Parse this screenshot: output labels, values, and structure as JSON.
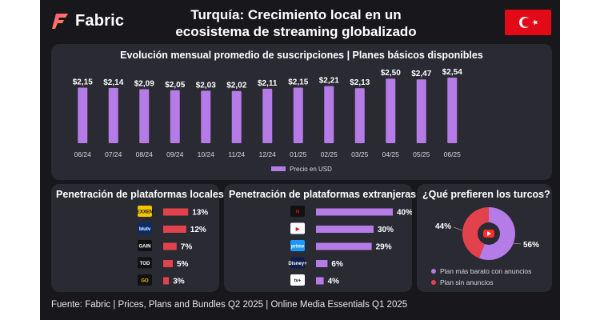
{
  "brand": {
    "name": "Fabric"
  },
  "header": {
    "title_line1": "Turquía: Crecimiento local en un",
    "title_line2": "ecosistema de streaming globalizado"
  },
  "colors": {
    "purple": "#b57be6",
    "red": "#e2424b",
    "panel": "#2a2a33",
    "background": "#17171c"
  },
  "chart_data": [
    {
      "type": "bar",
      "title": "Evolución mensual promedio de suscripciones | Planes básicos disponibles",
      "categories": [
        "06/24",
        "07/24",
        "08/24",
        "09/24",
        "10/24",
        "11/24",
        "12/24",
        "01/25",
        "02/25",
        "03/25",
        "04/25",
        "05/25",
        "06/25"
      ],
      "values": [
        2.15,
        2.14,
        2.09,
        2.05,
        2.03,
        2.02,
        2.11,
        2.15,
        2.21,
        2.13,
        2.5,
        2.47,
        2.54
      ],
      "labels": [
        "$2,15",
        "$2,14",
        "$2,09",
        "$2,05",
        "$2,03",
        "$2,02",
        "$2,11",
        "$2,15",
        "$2,21",
        "$2,13",
        "$2,50",
        "$2,47",
        "$2,54"
      ],
      "legend": "Precio en USD",
      "ylim": [
        0,
        2.6
      ]
    },
    {
      "type": "bar",
      "orientation": "horizontal",
      "title": "Penetración de plataformas locales",
      "categories": [
        "EXXEN",
        "blutv",
        "GAIN",
        "TOD",
        "TV+ GO"
      ],
      "values": [
        13,
        12,
        7,
        5,
        3
      ],
      "labels": [
        "13%",
        "12%",
        "7%",
        "5%",
        "3%"
      ],
      "xlim": [
        0,
        45
      ]
    },
    {
      "type": "bar",
      "orientation": "horizontal",
      "title": "Penetración de plataformas extranjeras",
      "categories": [
        "Netflix",
        "YouTube",
        "Prime Video",
        "Disney+",
        "Apple TV+"
      ],
      "values": [
        40,
        30,
        29,
        6,
        4
      ],
      "labels": [
        "40%",
        "30%",
        "29%",
        "6%",
        "4%"
      ],
      "xlim": [
        0,
        45
      ]
    },
    {
      "type": "pie",
      "title": "¿Qué prefieren los turcos?",
      "categories": [
        "Plan más barato con anuncios",
        "Plan sin anuncios"
      ],
      "values": [
        56,
        44
      ],
      "labels": [
        "56%",
        "44%"
      ]
    }
  ],
  "local_logos": [
    {
      "text": "EXXEN",
      "bg": "#f2c500",
      "fg": "#111111"
    },
    {
      "text": "blutv",
      "bg": "#0a2a6e",
      "fg": "#ffffff"
    },
    {
      "text": "GAIN",
      "bg": "#111111",
      "fg": "#ffffff"
    },
    {
      "text": "TOD",
      "bg": "#111111",
      "fg": "#ffffff"
    },
    {
      "text": "GO",
      "bg": "#111111",
      "fg": "#e8c200"
    }
  ],
  "foreign_logos": [
    {
      "text": "N",
      "bg": "#111111",
      "fg": "#e50914"
    },
    {
      "text": "▶",
      "bg": "#ffffff",
      "fg": "#ff0000"
    },
    {
      "text": "prime",
      "bg": "#1a98ff",
      "fg": "#ffffff"
    },
    {
      "text": "Disney+",
      "bg": "#0f1d4a",
      "fg": "#ffffff"
    },
    {
      "text": "tv+",
      "bg": "#ffffff",
      "fg": "#111111"
    }
  ],
  "footer": {
    "text": "Fuente: Fabric | Prices, Plans and Bundles Q2 2025 | Online Media Essentials Q1 2025"
  }
}
